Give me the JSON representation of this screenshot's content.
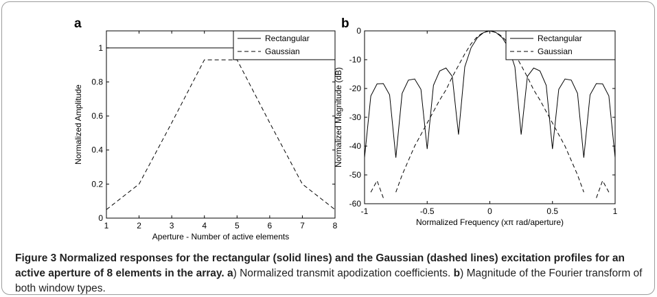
{
  "chart_data": [
    {
      "type": "line",
      "panel": "a",
      "xlabel": "Aperture - Number of active elements",
      "ylabel": "Normalized Amplitude",
      "x": [
        1,
        2,
        3,
        4,
        5,
        6,
        7,
        8
      ],
      "series": [
        {
          "name": "Rectangular",
          "color": "#000000",
          "linestyle": "solid",
          "values": [
            1,
            1,
            1,
            1,
            1,
            1,
            1,
            1
          ]
        },
        {
          "name": "Gaussian",
          "color": "#000000",
          "linestyle": "dashed",
          "values": [
            0.05,
            0.2,
            0.56,
            0.93,
            0.93,
            0.56,
            0.2,
            0.05
          ]
        }
      ],
      "xlim": [
        1,
        8
      ],
      "ylim": [
        0,
        1.1
      ],
      "xticks": [
        1,
        2,
        3,
        4,
        5,
        6,
        7,
        8
      ],
      "yticks": [
        0,
        0.2,
        0.4,
        0.6,
        0.8,
        1
      ],
      "legend": "upper right",
      "grid": false
    },
    {
      "type": "line",
      "panel": "b",
      "xlabel": "Normalized Frequency (xπ rad/aperture)",
      "ylabel": "Normalized Magnitude (dB)",
      "x": [
        -1,
        -0.95,
        -0.9,
        -0.85,
        -0.8,
        -0.75,
        -0.7,
        -0.65,
        -0.6,
        -0.55,
        -0.5,
        -0.45,
        -0.4,
        -0.35,
        -0.3,
        -0.25,
        -0.2,
        -0.15,
        -0.1,
        -0.05,
        0,
        0.05,
        0.1,
        0.15,
        0.2,
        0.25,
        0.3,
        0.35,
        0.4,
        0.45,
        0.5,
        0.55,
        0.6,
        0.65,
        0.7,
        0.75,
        0.8,
        0.85,
        0.9,
        0.95,
        1
      ],
      "series": [
        {
          "name": "Rectangular",
          "color": "#000000",
          "linestyle": "solid",
          "values": [
            -44,
            -22.6,
            -18.4,
            -18.3,
            -22.2,
            -44,
            -21.7,
            -17.1,
            -16.7,
            -20.3,
            -41,
            -18.9,
            -13.9,
            -12.9,
            -15.8,
            -36,
            -12.5,
            -5.9,
            -2.4,
            -0.6,
            0,
            -0.6,
            -2.4,
            -5.9,
            -12.5,
            -36,
            -15.8,
            -12.9,
            -13.9,
            -18.9,
            -41,
            -20.3,
            -16.7,
            -17.1,
            -21.7,
            -44,
            -22.2,
            -18.3,
            -18.4,
            -22.6,
            -44
          ]
        },
        {
          "name": "Gaussian",
          "color": "#000000",
          "linestyle": "dashed",
          "values": [
            null,
            -56,
            -52,
            -58,
            null,
            -56,
            -50,
            -45,
            -40,
            -36,
            -32,
            -28,
            -24,
            -20.5,
            -16,
            -12,
            -8,
            -4.5,
            -2,
            -0.5,
            0,
            -0.5,
            -2,
            -4.5,
            -8,
            -12,
            -16,
            -20.5,
            -24,
            -28,
            -32,
            -36,
            -40,
            -45,
            -50,
            -56,
            null,
            -58,
            -52,
            -56,
            null
          ]
        }
      ],
      "xlim": [
        -1,
        1
      ],
      "ylim": [
        -60,
        0
      ],
      "xticks": [
        -1,
        -0.5,
        0,
        0.5,
        1
      ],
      "yticks": [
        -60,
        -50,
        -40,
        -30,
        -20,
        -10,
        0
      ],
      "legend": "upper right",
      "grid": false
    }
  ],
  "caption": {
    "title": "Figure 3 Normalized responses for the rectangular (solid lines) and the Gaussian (dashed lines) excitation profiles for an active aperture of 8 elements in the array.",
    "label_a": "a",
    "text_a": ") Normalized transmit apodization coefficients.",
    "label_b": "b",
    "text_b": ") Magnitude of the Fourier transform of both window types."
  }
}
